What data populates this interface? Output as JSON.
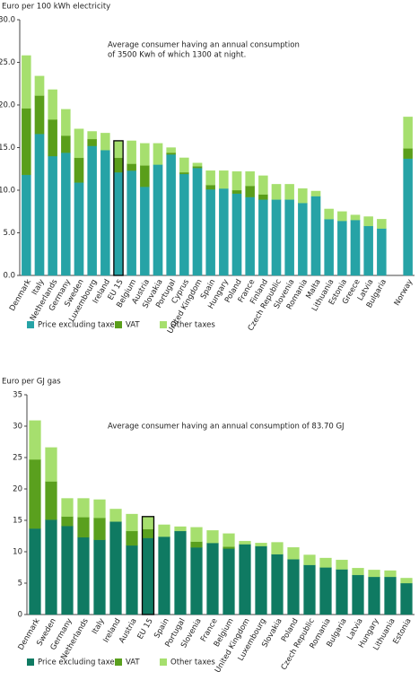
{
  "chart_data": [
    {
      "type": "bar",
      "stacked": true,
      "y_label": "Euro per 100 kWh electricity",
      "annotation": [
        "Average consumer having an annual consumption",
        "of 3500 Kwh of which 1300 at night."
      ],
      "categories": [
        "Denmark",
        "Italy",
        "Netherlands",
        "Germany",
        "Sweden",
        "Luxembourg",
        "Ireland",
        "EU 15",
        "Belgium",
        "Austria",
        "Slovakia",
        "Portugal",
        "Cyprus",
        "United Kingdom",
        "Spain",
        "Hungary",
        "Poland",
        "France",
        "Finland",
        "Czech Republic",
        "Slovenia",
        "Romania",
        "Malta",
        "Lithuania",
        "Estonia",
        "Greece",
        "Latvia",
        "Bulgaria",
        null,
        "Norway"
      ],
      "series": [
        {
          "name": "Price excluding taxes",
          "color": "#26a3a6",
          "values": [
            11.8,
            16.6,
            14.0,
            14.4,
            10.9,
            15.2,
            14.7,
            12.1,
            12.3,
            10.4,
            13.0,
            14.2,
            11.9,
            12.6,
            10.1,
            10.2,
            9.6,
            9.2,
            8.9,
            8.9,
            8.9,
            8.5,
            9.3,
            6.6,
            6.4,
            6.5,
            5.8,
            5.5,
            null,
            13.7
          ]
        },
        {
          "name": "VAT",
          "color": "#5a9e1a",
          "values": [
            7.8,
            4.5,
            4.3,
            2.0,
            2.9,
            0.8,
            0,
            1.7,
            0.8,
            2.5,
            0,
            0.2,
            0.2,
            0.2,
            0.5,
            0,
            0.4,
            1.3,
            0.6,
            0,
            0,
            0,
            0,
            0,
            0,
            0,
            0,
            0,
            null,
            1.2
          ]
        },
        {
          "name": "Other taxes",
          "color": "#a6df6e",
          "values": [
            6.2,
            2.3,
            3.5,
            3.1,
            3.4,
            0.9,
            2.0,
            2.0,
            2.7,
            2.6,
            2.5,
            0.6,
            1.7,
            0.4,
            1.7,
            2.1,
            2.2,
            1.7,
            2.2,
            1.8,
            1.8,
            1.7,
            0.6,
            1.2,
            1.1,
            0.6,
            1.1,
            1.1,
            null,
            3.7
          ]
        }
      ],
      "outline_index": 7,
      "ylim": [
        0,
        30
      ],
      "yticks": [
        {
          "value": 0,
          "label": "0.0"
        },
        {
          "value": 5,
          "label": "5.0"
        },
        {
          "value": 10,
          "label": "10.0"
        },
        {
          "value": 15,
          "label": "15.0"
        },
        {
          "value": 20,
          "label": "20.0"
        },
        {
          "value": 25,
          "label": "25.0"
        },
        {
          "value": 30,
          "label": "30.0"
        }
      ],
      "grid": false,
      "legend": "bottom"
    },
    {
      "type": "bar",
      "stacked": true,
      "y_label": "Euro per GJ gas",
      "annotation": [
        "Average consumer having an annual consumption of 83.70 GJ"
      ],
      "categories": [
        "Denmark",
        "Sweden",
        "Germany",
        "Netherlands",
        "Italy",
        "Ireland",
        "Austria",
        "EU 15",
        "Spain",
        "Portugal",
        "Slovenia",
        "France",
        "Belgium",
        "United Kingdom",
        "Luxembourg",
        "Slovakia",
        "Poland",
        "Czech Republic",
        "Romania",
        "Bulgaria",
        "Latvia",
        "Hungary",
        "Lithuania",
        "Estonia"
      ],
      "series": [
        {
          "name": "Price excluding taxes",
          "color": "#0f7a62",
          "values": [
            13.7,
            15.1,
            14.1,
            12.3,
            11.9,
            14.8,
            11.0,
            12.2,
            12.4,
            13.3,
            10.7,
            11.4,
            10.5,
            11.2,
            10.9,
            9.6,
            8.8,
            7.9,
            7.5,
            7.2,
            6.3,
            6.0,
            6.0,
            5.0
          ]
        },
        {
          "name": "VAT",
          "color": "#5aa01e",
          "values": [
            11.0,
            6.1,
            1.5,
            3.2,
            3.5,
            0,
            2.3,
            1.4,
            0,
            0,
            0.9,
            0,
            0.3,
            0,
            0,
            0,
            0,
            0,
            0,
            0,
            0,
            0,
            0,
            0
          ]
        },
        {
          "name": "Other taxes",
          "color": "#a6df6e",
          "values": [
            6.2,
            5.4,
            2.9,
            3.0,
            2.9,
            2.0,
            2.7,
            2.0,
            1.9,
            0.7,
            2.3,
            2.0,
            2.1,
            0.5,
            0.5,
            1.9,
            1.9,
            1.6,
            1.5,
            1.5,
            1.1,
            1.1,
            1.0,
            0.8
          ]
        }
      ],
      "outline_index": 7,
      "ylim": [
        0,
        35
      ],
      "yticks": [
        0,
        5,
        10,
        15,
        20,
        25,
        30,
        35
      ],
      "grid": false,
      "legend": "bottom"
    }
  ]
}
